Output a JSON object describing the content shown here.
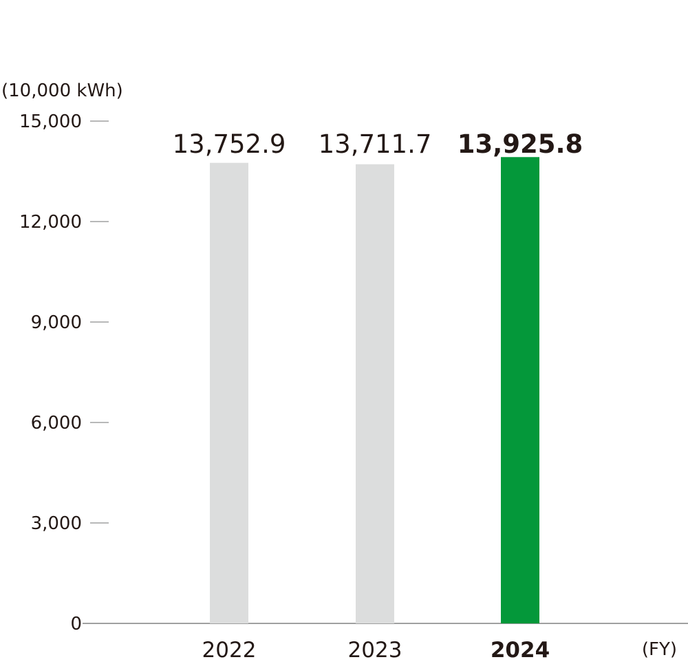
{
  "chart_data": {
    "type": "bar",
    "ylabel": "(10,000 kWh)",
    "xlabel": "(FY)",
    "categories": [
      "2022",
      "2023",
      "2024"
    ],
    "values": [
      13752.9,
      13711.7,
      13925.8
    ],
    "value_labels": [
      "13,752.9",
      "13,711.7",
      "13,925.8"
    ],
    "highlight_index": 2,
    "ylim": [
      0,
      15000
    ],
    "yticks": [
      0,
      3000,
      6000,
      9000,
      12000,
      15000
    ],
    "ytick_labels": [
      "0",
      "3,000",
      "6,000",
      "9,000",
      "12,000",
      "15,000"
    ],
    "grid": false,
    "colors": {
      "bar_default": "#dcdddd",
      "bar_highlight": "#04983a",
      "axis": "#9fa0a0",
      "text": "#231815"
    }
  }
}
